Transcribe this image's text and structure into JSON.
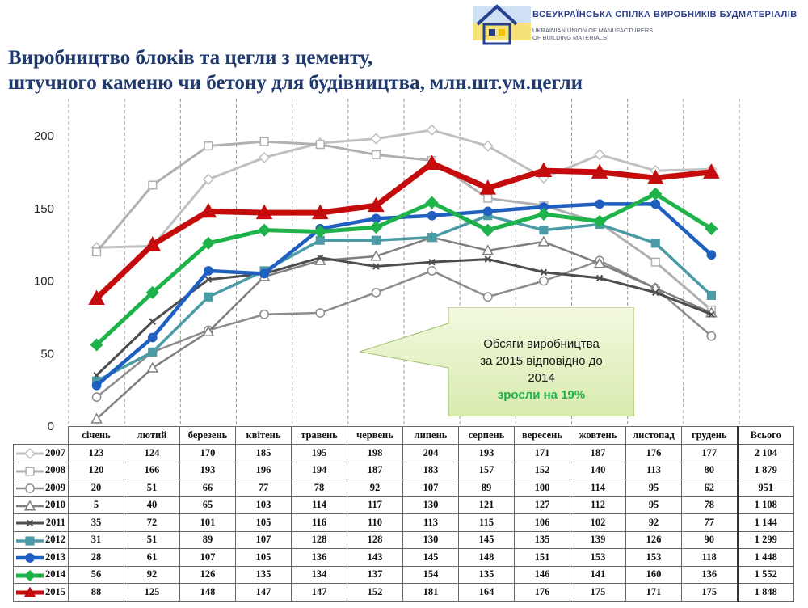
{
  "header": {
    "org_name_ua": "ВСЕУКРАЇНСЬКА СПІЛКА ВИРОБНИКІВ БУДМАТЕРІАЛІВ",
    "org_name_en_line1": "UKRAINIAN UNION OF MANUFACTURERS",
    "org_name_en_line2": "OF BUILDING MATERIALS"
  },
  "title_line1": "Виробництво блоків та цегли з цементу,",
  "title_line2": "штучного каменю чи бетону для будівництва, млн.шт.ум.цегли",
  "callout": {
    "line1": "Обсяги виробництва",
    "line2": "за 2015 відповідно до",
    "line3": "2014",
    "highlight": "зросли на 19%"
  },
  "colors": {
    "2007": "#c0c0c0",
    "2008": "#b0b0b0",
    "2009": "#8c8c8c",
    "2010": "#7f7f7f",
    "2011": "#4d4d4d",
    "2012": "#4a9ba6",
    "2013": "#1f5fc0",
    "2014": "#1db34a",
    "2015": "#c40c0c"
  },
  "chart_data": {
    "type": "line",
    "categories": [
      "січень",
      "лютий",
      "березень",
      "квітень",
      "травень",
      "червень",
      "липень",
      "серпень",
      "вересень",
      "жовтень",
      "листопад",
      "грудень"
    ],
    "total_label": "Всього",
    "ylim": [
      0,
      200
    ],
    "yticks": [
      "0",
      "50",
      "100",
      "150",
      "200"
    ],
    "grid": "vertical dashed",
    "series": [
      {
        "name": "2007",
        "marker": "diamond-open",
        "values": [
          123,
          124,
          170,
          185,
          195,
          198,
          204,
          193,
          171,
          187,
          176,
          177
        ],
        "total": "2 104"
      },
      {
        "name": "2008",
        "marker": "square-open",
        "values": [
          120,
          166,
          193,
          196,
          194,
          187,
          183,
          157,
          152,
          140,
          113,
          80
        ],
        "total": "1 879"
      },
      {
        "name": "2009",
        "marker": "circle-open",
        "values": [
          20,
          51,
          66,
          77,
          78,
          92,
          107,
          89,
          100,
          114,
          95,
          62
        ],
        "total": "951"
      },
      {
        "name": "2010",
        "marker": "triangle-open",
        "values": [
          5,
          40,
          65,
          103,
          114,
          117,
          130,
          121,
          127,
          112,
          95,
          78
        ],
        "total": "1 108"
      },
      {
        "name": "2011",
        "marker": "x",
        "values": [
          35,
          72,
          101,
          105,
          116,
          110,
          113,
          115,
          106,
          102,
          92,
          77
        ],
        "total": "1 144"
      },
      {
        "name": "2012",
        "marker": "square",
        "values": [
          31,
          51,
          89,
          107,
          128,
          128,
          130,
          145,
          135,
          139,
          126,
          90
        ],
        "total": "1 299"
      },
      {
        "name": "2013",
        "marker": "circle",
        "values": [
          28,
          61,
          107,
          105,
          136,
          143,
          145,
          148,
          151,
          153,
          153,
          118
        ],
        "total": "1 448"
      },
      {
        "name": "2014",
        "marker": "diamond",
        "values": [
          56,
          92,
          126,
          135,
          134,
          137,
          154,
          135,
          146,
          141,
          160,
          136
        ],
        "total": "1 552"
      },
      {
        "name": "2015",
        "marker": "triangle",
        "values": [
          88,
          125,
          148,
          147,
          147,
          152,
          181,
          164,
          176,
          175,
          171,
          175
        ],
        "total": "1 848"
      }
    ]
  }
}
